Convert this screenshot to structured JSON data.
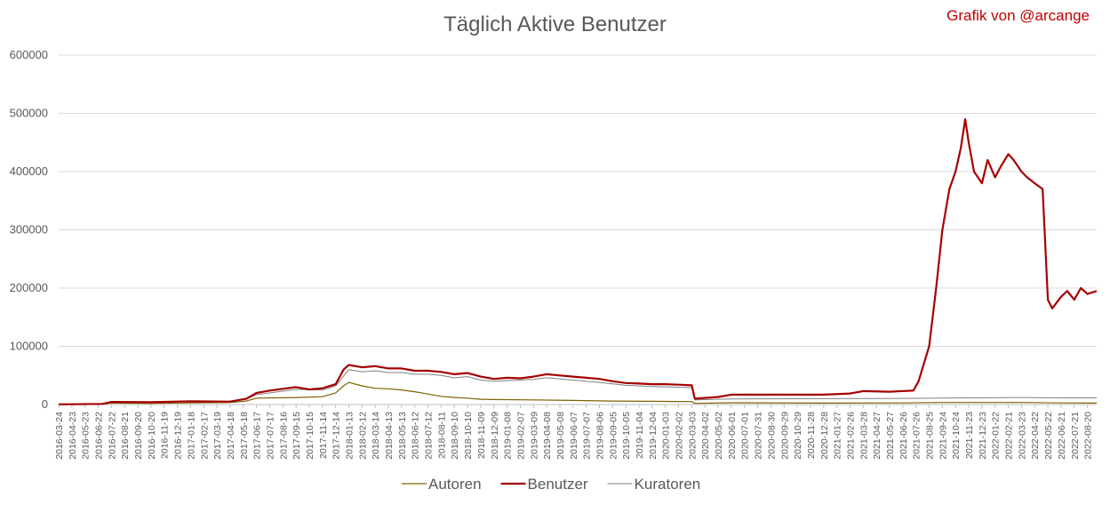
{
  "title": "Täglich Aktive Benutzer",
  "credit": "Grafik von @arcange",
  "credit_color": "#c00000",
  "chart_data": {
    "type": "line",
    "title": "Täglich Aktive Benutzer",
    "ylim": [
      0,
      600000
    ],
    "yticks": [
      "0",
      "100000",
      "200000",
      "300000",
      "400000",
      "500000",
      "600000"
    ],
    "ytick_values": [
      0,
      100000,
      200000,
      300000,
      400000,
      500000,
      600000
    ],
    "grid": true,
    "legend_position": "bottom",
    "x_start": "2016-03-24",
    "x_end": "2022-09-10",
    "x_tick_labels": [
      "2016-03-24",
      "2016-04-23",
      "2016-05-23",
      "2016-06-22",
      "2016-07-22",
      "2016-08-21",
      "2016-09-20",
      "2016-10-20",
      "2016-11-19",
      "2016-12-19",
      "2017-01-18",
      "2017-02-17",
      "2017-03-19",
      "2017-04-18",
      "2017-05-18",
      "2017-06-17",
      "2017-07-17",
      "2017-08-16",
      "2017-09-15",
      "2017-10-15",
      "2017-11-14",
      "2017-12-14",
      "2018-01-13",
      "2018-02-12",
      "2018-03-14",
      "2018-04-13",
      "2018-05-13",
      "2018-06-12",
      "2018-07-12",
      "2018-08-11",
      "2018-09-10",
      "2018-10-10",
      "2018-11-09",
      "2018-12-09",
      "2019-01-08",
      "2019-02-07",
      "2019-03-09",
      "2019-04-08",
      "2019-05-08",
      "2019-06-07",
      "2019-07-07",
      "2019-08-06",
      "2019-09-05",
      "2019-10-05",
      "2019-11-04",
      "2019-12-04",
      "2020-01-03",
      "2020-02-02",
      "2020-03-03",
      "2020-04-02",
      "2020-05-02",
      "2020-06-01",
      "2020-07-01",
      "2020-07-31",
      "2020-08-30",
      "2020-09-29",
      "2020-10-29",
      "2020-11-28",
      "2020-12-28",
      "2021-01-27",
      "2021-02-26",
      "2021-03-28",
      "2021-04-27",
      "2021-05-27",
      "2021-06-26",
      "2021-07-26",
      "2021-08-25",
      "2021-09-24",
      "2021-10-24",
      "2021-11-23",
      "2021-12-23",
      "2022-01-22",
      "2022-02-21",
      "2022-03-23",
      "2022-04-22",
      "2022-05-22",
      "2022-06-21",
      "2022-07-21",
      "2022-08-20"
    ],
    "series": [
      {
        "name": "Autoren",
        "color": "#7f6000",
        "points": [
          [
            "2016-03-24",
            300
          ],
          [
            "2016-07-01",
            800
          ],
          [
            "2016-07-22",
            2500
          ],
          [
            "2016-10-20",
            2000
          ],
          [
            "2017-01-18",
            2800
          ],
          [
            "2017-04-18",
            3500
          ],
          [
            "2017-05-25",
            6000
          ],
          [
            "2017-06-17",
            11000
          ],
          [
            "2017-09-15",
            12000
          ],
          [
            "2017-11-14",
            13500
          ],
          [
            "2017-12-14",
            20000
          ],
          [
            "2018-01-01",
            32000
          ],
          [
            "2018-01-13",
            38000
          ],
          [
            "2018-02-12",
            32000
          ],
          [
            "2018-03-14",
            28000
          ],
          [
            "2018-04-13",
            27000
          ],
          [
            "2018-05-13",
            25000
          ],
          [
            "2018-06-12",
            22000
          ],
          [
            "2018-07-12",
            18000
          ],
          [
            "2018-08-11",
            14000
          ],
          [
            "2018-09-10",
            12000
          ],
          [
            "2018-10-10",
            11000
          ],
          [
            "2018-11-09",
            9000
          ],
          [
            "2018-12-09",
            8500
          ],
          [
            "2019-03-09",
            8000
          ],
          [
            "2019-06-07",
            7000
          ],
          [
            "2019-09-05",
            6000
          ],
          [
            "2019-12-04",
            5500
          ],
          [
            "2020-03-03",
            5000
          ],
          [
            "2020-03-10",
            2000
          ],
          [
            "2020-06-01",
            3000
          ],
          [
            "2020-12-28",
            2500
          ],
          [
            "2021-06-26",
            2800
          ],
          [
            "2021-09-24",
            3500
          ],
          [
            "2022-03-23",
            3500
          ],
          [
            "2022-06-21",
            2800
          ],
          [
            "2022-09-10",
            2500
          ]
        ]
      },
      {
        "name": "Benutzer",
        "color": "#a50000",
        "points": [
          [
            "2016-03-24",
            300
          ],
          [
            "2016-07-01",
            1000
          ],
          [
            "2016-07-22",
            4500
          ],
          [
            "2016-10-20",
            4000
          ],
          [
            "2017-01-18",
            5500
          ],
          [
            "2017-04-18",
            5000
          ],
          [
            "2017-05-25",
            10000
          ],
          [
            "2017-06-17",
            20000
          ],
          [
            "2017-07-17",
            24000
          ],
          [
            "2017-09-15",
            30000
          ],
          [
            "2017-10-15",
            26000
          ],
          [
            "2017-11-14",
            28000
          ],
          [
            "2017-12-14",
            35000
          ],
          [
            "2018-01-01",
            60000
          ],
          [
            "2018-01-13",
            68000
          ],
          [
            "2018-02-12",
            64000
          ],
          [
            "2018-03-14",
            66000
          ],
          [
            "2018-04-13",
            62000
          ],
          [
            "2018-05-13",
            62000
          ],
          [
            "2018-06-12",
            58000
          ],
          [
            "2018-07-12",
            58000
          ],
          [
            "2018-08-11",
            56000
          ],
          [
            "2018-09-10",
            52000
          ],
          [
            "2018-10-10",
            54000
          ],
          [
            "2018-11-09",
            48000
          ],
          [
            "2018-12-09",
            44000
          ],
          [
            "2019-01-08",
            46000
          ],
          [
            "2019-02-07",
            45000
          ],
          [
            "2019-03-09",
            48000
          ],
          [
            "2019-04-08",
            52000
          ],
          [
            "2019-05-08",
            50000
          ],
          [
            "2019-06-07",
            48000
          ],
          [
            "2019-07-07",
            46000
          ],
          [
            "2019-08-06",
            44000
          ],
          [
            "2019-09-05",
            40000
          ],
          [
            "2019-10-05",
            37000
          ],
          [
            "2019-11-04",
            36000
          ],
          [
            "2019-12-04",
            35000
          ],
          [
            "2020-01-03",
            35000
          ],
          [
            "2020-02-02",
            34000
          ],
          [
            "2020-03-03",
            33000
          ],
          [
            "2020-03-10",
            10000
          ],
          [
            "2020-05-02",
            13000
          ],
          [
            "2020-06-01",
            17000
          ],
          [
            "2020-09-29",
            17000
          ],
          [
            "2020-12-28",
            17000
          ],
          [
            "2021-02-26",
            19000
          ],
          [
            "2021-03-28",
            23000
          ],
          [
            "2021-05-27",
            22000
          ],
          [
            "2021-07-20",
            24000
          ],
          [
            "2021-08-01",
            40000
          ],
          [
            "2021-08-25",
            100000
          ],
          [
            "2021-09-10",
            200000
          ],
          [
            "2021-09-24",
            300000
          ],
          [
            "2021-10-10",
            370000
          ],
          [
            "2021-10-24",
            400000
          ],
          [
            "2021-11-05",
            440000
          ],
          [
            "2021-11-15",
            490000
          ],
          [
            "2021-11-23",
            450000
          ],
          [
            "2021-12-05",
            400000
          ],
          [
            "2021-12-23",
            380000
          ],
          [
            "2022-01-05",
            420000
          ],
          [
            "2022-01-22",
            390000
          ],
          [
            "2022-02-05",
            410000
          ],
          [
            "2022-02-21",
            430000
          ],
          [
            "2022-03-05",
            420000
          ],
          [
            "2022-03-23",
            400000
          ],
          [
            "2022-04-05",
            390000
          ],
          [
            "2022-04-22",
            380000
          ],
          [
            "2022-05-10",
            370000
          ],
          [
            "2022-05-22",
            180000
          ],
          [
            "2022-06-01",
            165000
          ],
          [
            "2022-06-21",
            185000
          ],
          [
            "2022-07-05",
            195000
          ],
          [
            "2022-07-21",
            180000
          ],
          [
            "2022-08-05",
            200000
          ],
          [
            "2022-08-20",
            190000
          ],
          [
            "2022-09-10",
            195000
          ]
        ]
      },
      {
        "name": "Kuratoren",
        "color": "#7f7f7f",
        "points": [
          [
            "2016-03-24",
            300
          ],
          [
            "2016-07-01",
            900
          ],
          [
            "2016-07-22",
            4000
          ],
          [
            "2016-10-20",
            3500
          ],
          [
            "2017-01-18",
            5000
          ],
          [
            "2017-04-18",
            4500
          ],
          [
            "2017-05-25",
            9000
          ],
          [
            "2017-06-17",
            17000
          ],
          [
            "2017-09-15",
            26000
          ],
          [
            "2017-11-14",
            25000
          ],
          [
            "2017-12-14",
            32000
          ],
          [
            "2018-01-13",
            60000
          ],
          [
            "2018-02-12",
            56000
          ],
          [
            "2018-03-14",
            58000
          ],
          [
            "2018-04-13",
            55000
          ],
          [
            "2018-05-13",
            55000
          ],
          [
            "2018-06-12",
            52000
          ],
          [
            "2018-07-12",
            52000
          ],
          [
            "2018-08-11",
            50000
          ],
          [
            "2018-09-10",
            46000
          ],
          [
            "2018-10-10",
            48000
          ],
          [
            "2018-11-09",
            42000
          ],
          [
            "2018-12-09",
            40000
          ],
          [
            "2019-03-09",
            43000
          ],
          [
            "2019-04-08",
            46000
          ],
          [
            "2019-06-07",
            42000
          ],
          [
            "2019-08-06",
            38000
          ],
          [
            "2019-10-05",
            33000
          ],
          [
            "2019-12-04",
            31000
          ],
          [
            "2020-03-03",
            29000
          ],
          [
            "2020-03-10",
            8000
          ],
          [
            "2020-06-01",
            9500
          ],
          [
            "2020-12-28",
            10000
          ],
          [
            "2021-06-26",
            10500
          ],
          [
            "2021-09-24",
            11000
          ],
          [
            "2022-03-23",
            12000
          ],
          [
            "2022-06-21",
            11500
          ],
          [
            "2022-09-10",
            11500
          ]
        ]
      }
    ]
  }
}
